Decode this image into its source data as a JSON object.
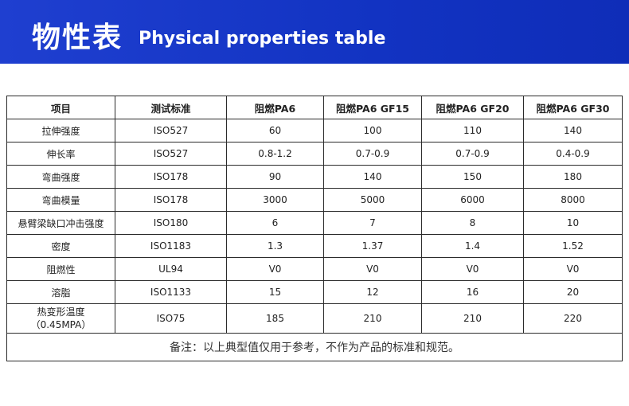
{
  "header": {
    "title_cn": "物性表",
    "title_en": "Physical properties table"
  },
  "table": {
    "columns": [
      "项目",
      "测试标准",
      "阻燃PA6",
      "阻燃PA6 GF15",
      "阻燃PA6 GF20",
      "阻燃PA6 GF30"
    ],
    "rows": [
      {
        "item": "拉伸强度",
        "standard": "ISO527",
        "pa6": "60",
        "gf15": "100",
        "gf20": "110",
        "gf30": "140"
      },
      {
        "item": "伸长率",
        "standard": "ISO527",
        "pa6": "0.8-1.2",
        "gf15": "0.7-0.9",
        "gf20": "0.7-0.9",
        "gf30": "0.4-0.9"
      },
      {
        "item": "弯曲强度",
        "standard": "ISO178",
        "pa6": "90",
        "gf15": "140",
        "gf20": "150",
        "gf30": "180"
      },
      {
        "item": "弯曲模量",
        "standard": "ISO178",
        "pa6": "3000",
        "gf15": "5000",
        "gf20": "6000",
        "gf30": "8000"
      },
      {
        "item": "悬臂梁缺口冲击强度",
        "standard": "ISO180",
        "pa6": "6",
        "gf15": "7",
        "gf20": "8",
        "gf30": "10"
      },
      {
        "item": "密度",
        "standard": "ISO1183",
        "pa6": "1.3",
        "gf15": "1.37",
        "gf20": "1.4",
        "gf30": "1.52"
      },
      {
        "item": "阻燃性",
        "standard": "UL94",
        "pa6": "V0",
        "gf15": "V0",
        "gf20": "V0",
        "gf30": "V0"
      },
      {
        "item": "溶脂",
        "standard": "ISO1133",
        "pa6": "15",
        "gf15": "12",
        "gf20": "16",
        "gf30": "20"
      },
      {
        "item": "热变形温度",
        "item_line2": "（0.45MPA）",
        "standard": "ISO75",
        "pa6": "185",
        "gf15": "210",
        "gf20": "210",
        "gf30": "220"
      }
    ],
    "note": "备注：以上典型值仅用于参考，不作为产品的标准和规范。"
  }
}
